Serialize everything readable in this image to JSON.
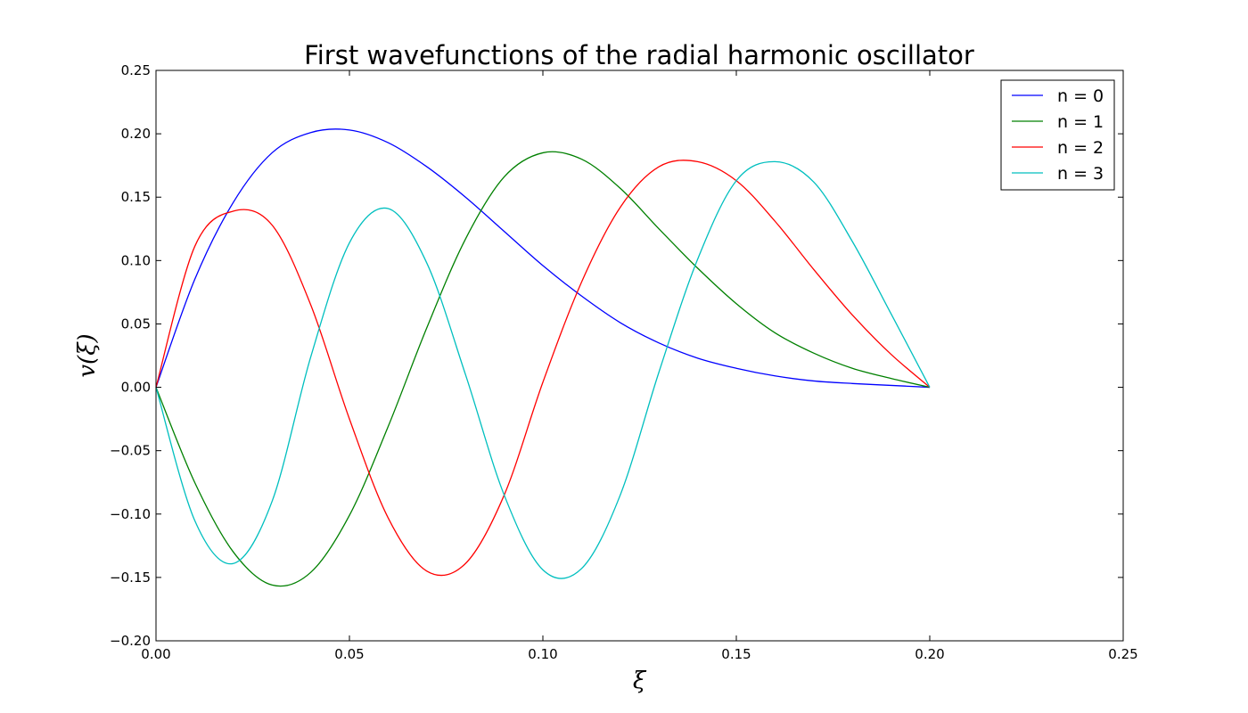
{
  "chart_data": {
    "type": "line",
    "title": "First wavefunctions of the radial harmonic oscillator",
    "xlabel": "ξ",
    "ylabel": "v(ξ)",
    "xlim": [
      0.0,
      0.25
    ],
    "ylim": [
      -0.2,
      0.25
    ],
    "xticks": [
      "0.00",
      "0.05",
      "0.10",
      "0.15",
      "0.20",
      "0.25"
    ],
    "yticks": [
      "−0.20",
      "−0.15",
      "−0.10",
      "−0.05",
      "0.00",
      "0.05",
      "0.10",
      "0.15",
      "0.20",
      "0.25"
    ],
    "grid": false,
    "legend_position": "top-right",
    "x": [
      0.0,
      0.01,
      0.02,
      0.03,
      0.04,
      0.05,
      0.06,
      0.07,
      0.08,
      0.09,
      0.1,
      0.11,
      0.12,
      0.13,
      0.14,
      0.15,
      0.16,
      0.17,
      0.18,
      0.19,
      0.2
    ],
    "series": [
      {
        "name": "n = 0",
        "color": "#0000ff",
        "values": [
          0.0,
          0.085,
          0.146,
          0.185,
          0.201,
          0.203,
          0.193,
          0.174,
          0.15,
          0.123,
          0.096,
          0.072,
          0.051,
          0.035,
          0.023,
          0.015,
          0.009,
          0.005,
          0.003,
          0.0015,
          0.0
        ]
      },
      {
        "name": "n = 1",
        "color": "#008000",
        "values": [
          0.0,
          -0.075,
          -0.13,
          -0.156,
          -0.146,
          -0.101,
          -0.031,
          0.047,
          0.117,
          0.166,
          0.185,
          0.18,
          0.157,
          0.125,
          0.094,
          0.066,
          0.043,
          0.027,
          0.015,
          0.007,
          0.0
        ]
      },
      {
        "name": "n = 2",
        "color": "#ff0000",
        "values": [
          0.0,
          0.111,
          0.139,
          0.128,
          0.065,
          -0.025,
          -0.103,
          -0.145,
          -0.139,
          -0.085,
          0.004,
          0.083,
          0.142,
          0.174,
          0.178,
          0.163,
          0.131,
          0.093,
          0.057,
          0.026,
          0.0
        ]
      },
      {
        "name": "n = 3",
        "color": "#00bfbf",
        "values": [
          0.0,
          -0.105,
          -0.139,
          -0.09,
          0.024,
          0.114,
          0.141,
          0.098,
          0.01,
          -0.085,
          -0.144,
          -0.143,
          -0.085,
          0.012,
          0.101,
          0.163,
          0.178,
          0.162,
          0.115,
          0.058,
          0.0
        ]
      }
    ]
  }
}
